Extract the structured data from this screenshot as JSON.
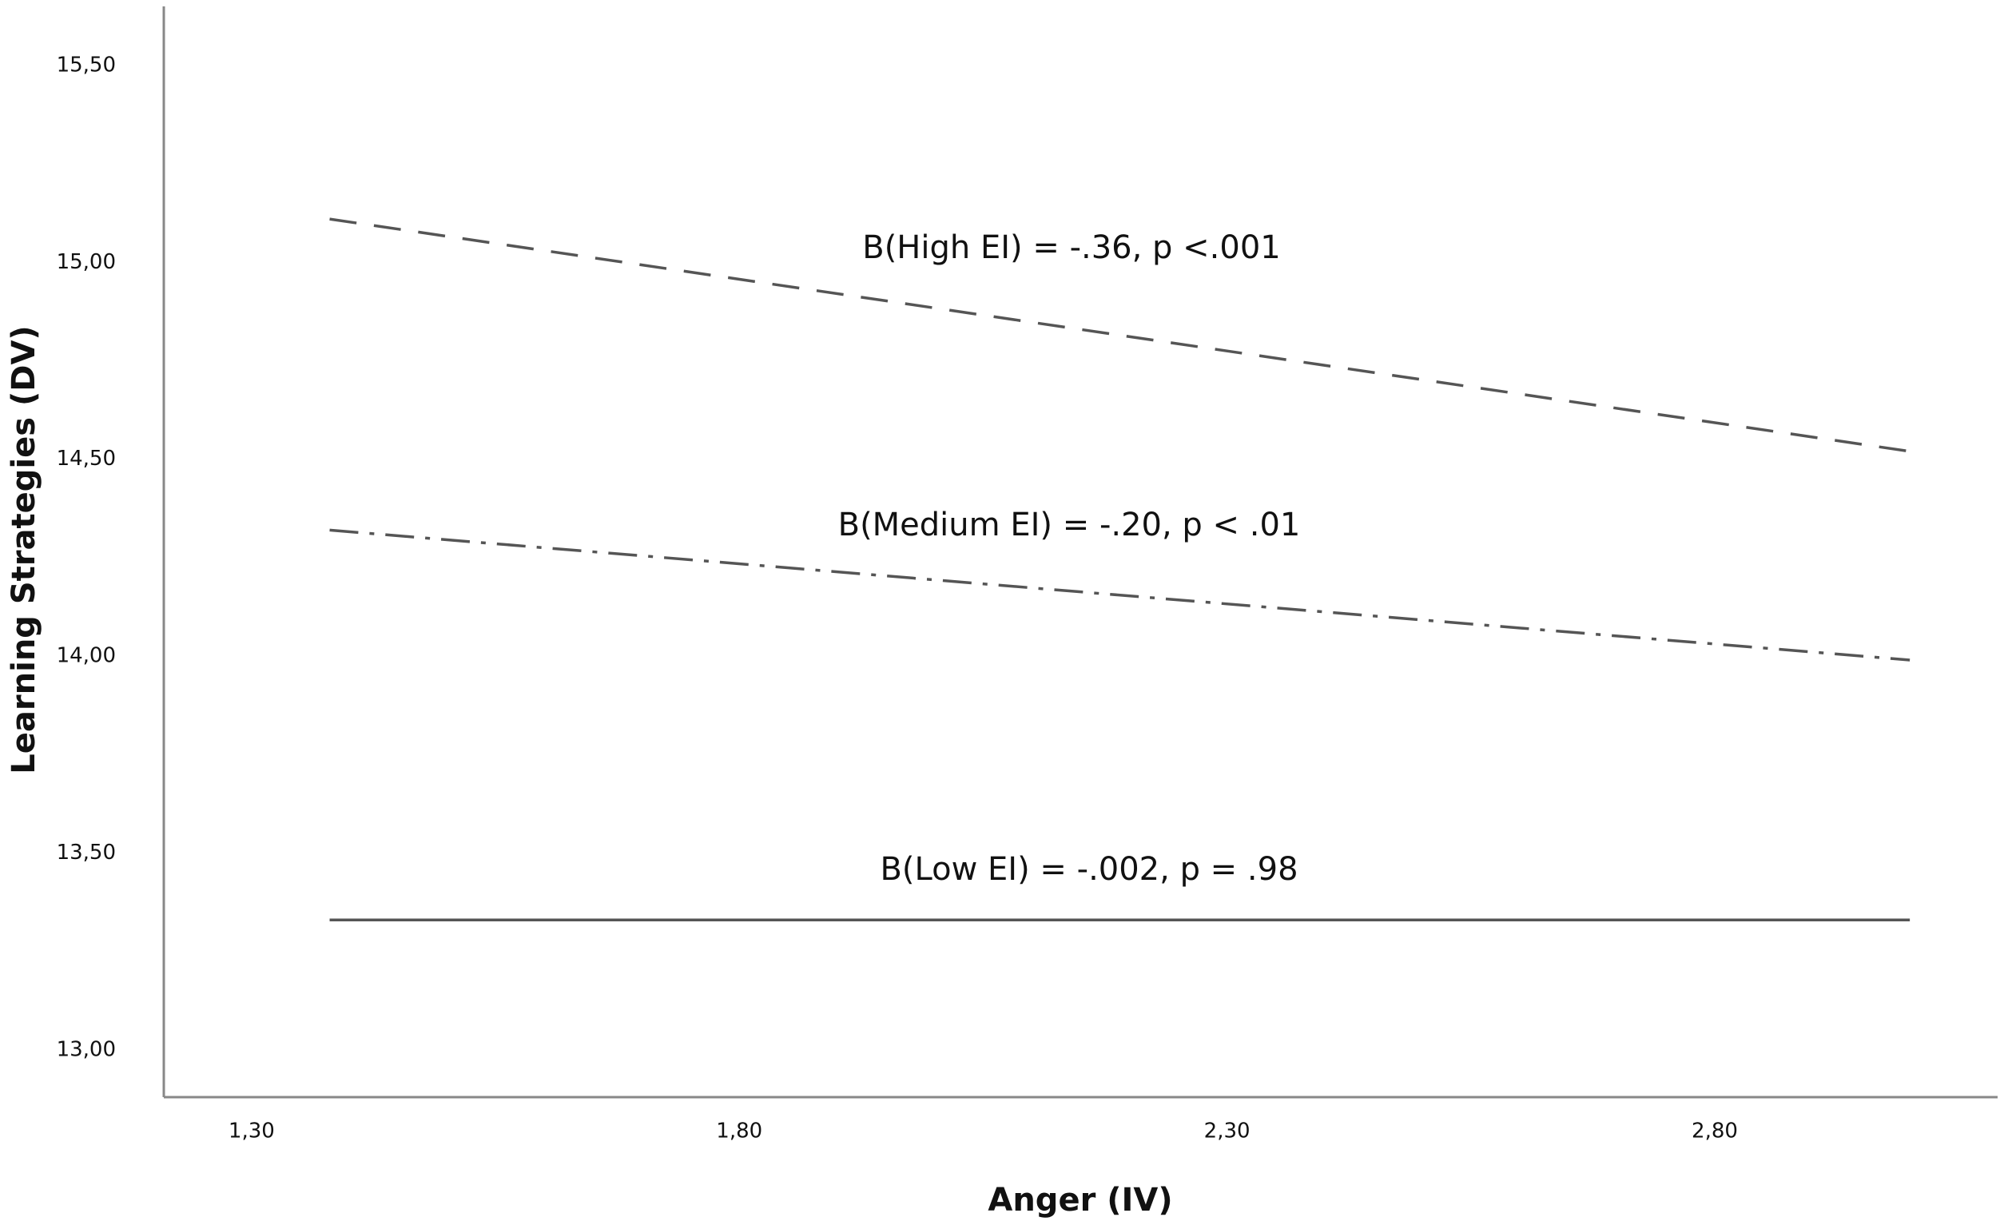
{
  "chart_data": {
    "type": "line",
    "x_label": "Anger (IV)",
    "y_label": "Learning Strategies (DV)",
    "x": [
      1.38,
      3.0
    ],
    "series": [
      {
        "color": "#555555",
        "style": "dashed",
        "values": [
          15.11,
          14.52
        ]
      },
      {
        "color": "#555555",
        "style": "dashdot",
        "values": [
          14.32,
          13.99
        ]
      },
      {
        "color": "#555555",
        "style": "solid",
        "values": [
          13.33,
          13.33
        ]
      }
    ],
    "annotations": [
      "B(High EI) = -.36, p <.001",
      "B(Medium EI) = -.20, p < .01",
      "B(Low EI) = -.002, p = .98"
    ],
    "xlim": [
      1.21,
      3.09
    ],
    "ylim": [
      12.88,
      15.65
    ],
    "xticks": [
      {
        "value": 1.3,
        "label": "1,30"
      },
      {
        "value": 1.8,
        "label": "1,80"
      },
      {
        "value": 2.3,
        "label": "2,30"
      },
      {
        "value": 2.8,
        "label": "2,80"
      }
    ],
    "yticks": [
      {
        "value": 13.0,
        "label": "13,00"
      },
      {
        "value": 13.5,
        "label": "13,50"
      },
      {
        "value": 14.0,
        "label": "14,00"
      },
      {
        "value": 14.5,
        "label": "14,50"
      },
      {
        "value": 15.0,
        "label": "15,00"
      },
      {
        "value": 15.5,
        "label": "15,50"
      }
    ],
    "grid": false
  }
}
